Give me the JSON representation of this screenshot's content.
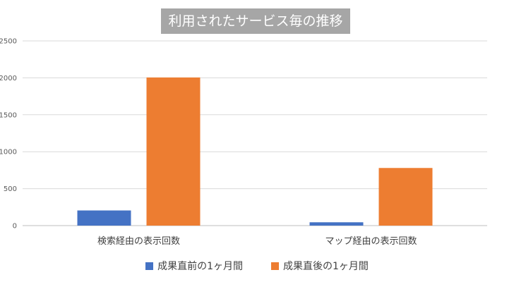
{
  "chart_data": {
    "type": "bar",
    "title": "利用されたサービス毎の推移",
    "xlabel": "",
    "ylabel": "",
    "categories": [
      "検索経由の表示回数",
      "マップ経由の表示回数"
    ],
    "series": [
      {
        "name": "成果直前の1ヶ月間",
        "values": [
          205,
          45
        ],
        "color": "#4472c4"
      },
      {
        "name": "成果直後の1ヶ月間",
        "values": [
          2005,
          780
        ],
        "color": "#ed7d31"
      }
    ],
    "ylim": [
      0,
      2500
    ],
    "yticks": [
      0,
      500,
      1000,
      1500,
      2000,
      2500
    ],
    "grid": true,
    "legend_position": "bottom"
  }
}
